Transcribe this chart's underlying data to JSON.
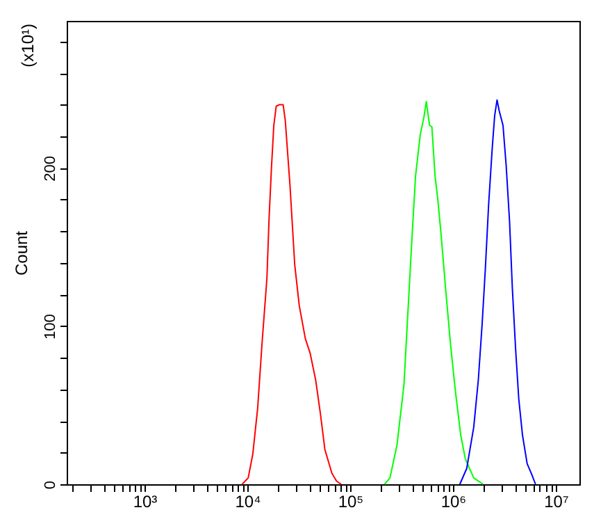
{
  "chart_data": {
    "type": "line",
    "xlabel": null,
    "ylabel": "Count",
    "log": "x",
    "grid": false,
    "marker": "none",
    "line_style": "solid",
    "annotations": [
      "(x10¹)"
    ],
    "xlim": [
      175,
      17000000
    ],
    "ylim": [
      0,
      293
    ],
    "xticks": [
      {
        "value": 200,
        "label": null
      },
      {
        "value": 300,
        "label": null
      },
      {
        "value": 400,
        "label": null
      },
      {
        "value": 500,
        "label": null
      },
      {
        "value": 600,
        "label": null
      },
      {
        "value": 700,
        "label": null
      },
      {
        "value": 800,
        "label": null
      },
      {
        "value": 900,
        "label": null
      },
      {
        "value": 1000,
        "label": "10³"
      },
      {
        "value": 2000,
        "label": null
      },
      {
        "value": 3000,
        "label": null
      },
      {
        "value": 4000,
        "label": null
      },
      {
        "value": 5000,
        "label": null
      },
      {
        "value": 6000,
        "label": null
      },
      {
        "value": 7000,
        "label": null
      },
      {
        "value": 8000,
        "label": null
      },
      {
        "value": 9000,
        "label": null
      },
      {
        "value": 10000,
        "label": "10⁴"
      },
      {
        "value": 20000,
        "label": null
      },
      {
        "value": 30000,
        "label": null
      },
      {
        "value": 40000,
        "label": null
      },
      {
        "value": 50000,
        "label": null
      },
      {
        "value": 60000,
        "label": null
      },
      {
        "value": 70000,
        "label": null
      },
      {
        "value": 80000,
        "label": null
      },
      {
        "value": 90000,
        "label": null
      },
      {
        "value": 100000,
        "label": "10⁵"
      },
      {
        "value": 200000,
        "label": null
      },
      {
        "value": 300000,
        "label": null
      },
      {
        "value": 400000,
        "label": null
      },
      {
        "value": 500000,
        "label": null
      },
      {
        "value": 600000,
        "label": null
      },
      {
        "value": 700000,
        "label": null
      },
      {
        "value": 800000,
        "label": null
      },
      {
        "value": 900000,
        "label": null
      },
      {
        "value": 1000000,
        "label": "10⁶"
      },
      {
        "value": 2000000,
        "label": null
      },
      {
        "value": 3000000,
        "label": null
      },
      {
        "value": 4000000,
        "label": null
      },
      {
        "value": 5000000,
        "label": null
      },
      {
        "value": 6000000,
        "label": null
      },
      {
        "value": 7000000,
        "label": null
      },
      {
        "value": 8000000,
        "label": null
      },
      {
        "value": 9000000,
        "label": null
      },
      {
        "value": 10000000,
        "label": "10⁷"
      }
    ],
    "yticks": [
      0,
      {
        "value": 20,
        "label": null
      },
      {
        "value": 40,
        "label": null
      },
      {
        "value": 60,
        "label": null
      },
      {
        "value": 80,
        "label": null
      },
      100,
      {
        "value": 120,
        "label": null
      },
      {
        "value": 140,
        "label": null
      },
      {
        "value": 160,
        "label": null
      },
      {
        "value": 180,
        "label": null
      },
      200,
      {
        "value": 220,
        "label": null
      },
      {
        "value": 240,
        "label": null
      },
      {
        "value": 260,
        "label": null
      },
      {
        "value": 280,
        "label": null
      }
    ],
    "series": [
      {
        "color": "#ff0000",
        "x": [
          8900,
          10200,
          11300,
          12600,
          13900,
          15500,
          16300,
          17200,
          18100,
          19100,
          20500,
          22300,
          23400,
          26000,
          28900,
          32000,
          36700,
          40800,
          46200,
          51300,
          56800,
          66400,
          73800,
          81800
        ],
        "values": [
          0,
          4,
          19,
          48,
          89,
          130,
          169,
          201,
          227,
          239,
          240,
          240,
          230,
          189,
          139,
          113,
          92,
          83,
          66,
          45,
          22,
          7,
          2,
          0
        ]
      },
      {
        "color": "#00ff00",
        "x": [
          216000,
          244000,
          286000,
          334000,
          370000,
          403000,
          433000,
          481000,
          522000,
          551000,
          592000,
          624000,
          670000,
          713000,
          769000,
          853000,
          946000,
          1052000,
          1191000,
          1321000,
          1593000,
          1964000
        ],
        "values": [
          0,
          4,
          25,
          63,
          116,
          160,
          195,
          221,
          232,
          242,
          227,
          226,
          195,
          180,
          157,
          122,
          89,
          60,
          31,
          16,
          4,
          0
        ]
      },
      {
        "color": "#0000ff",
        "x": [
          1167000,
          1362000,
          1593000,
          1766000,
          1922000,
          2066000,
          2225000,
          2414000,
          2546000,
          2686000,
          2821000,
          3069000,
          3299000,
          3556000,
          3784000,
          4066000,
          4368000,
          4750000,
          5270000,
          5861000,
          6358000
        ],
        "values": [
          0,
          10,
          36,
          66,
          101,
          136,
          177,
          213,
          233,
          243,
          236,
          227,
          201,
          166,
          124,
          86,
          54,
          31,
          13,
          6,
          0
        ]
      }
    ]
  }
}
